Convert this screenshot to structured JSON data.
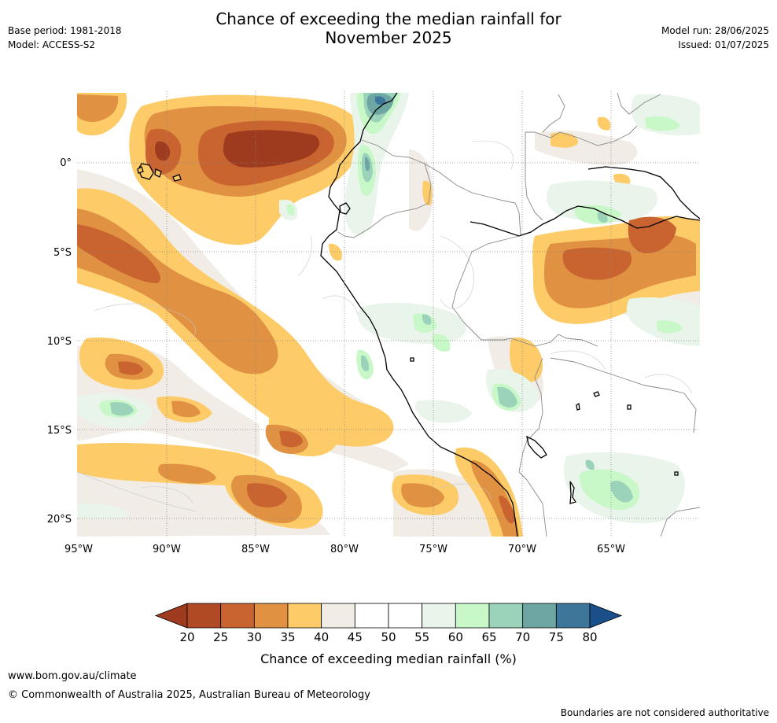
{
  "title": {
    "line1": "Chance of exceeding the median rainfall for",
    "line2": "November 2025"
  },
  "meta": {
    "base_period": "Base period: 1981-2018",
    "model": "Model: ACCESS-S2",
    "model_run": "Model run: 28/06/2025",
    "issued": "Issued: 01/07/2025"
  },
  "map": {
    "lon_labels": [
      "95°W",
      "90°W",
      "85°W",
      "80°W",
      "75°W",
      "70°W",
      "65°W"
    ],
    "lat_labels": [
      "0°",
      "5°S",
      "10°S",
      "15°S",
      "20°S"
    ]
  },
  "colorbar": {
    "label": "Chance of exceeding median rainfall (%)",
    "ticks": [
      "20",
      "25",
      "30",
      "35",
      "40",
      "45",
      "50",
      "55",
      "60",
      "65",
      "70",
      "75",
      "80"
    ],
    "colors": [
      "#9e3a1e",
      "#b04a25",
      "#c96330",
      "#e09142",
      "#fdcb67",
      "#f1ece6",
      "#ffffff",
      "#ffffff",
      "#e9f5ea",
      "#c8f7c8",
      "#9bd2ba",
      "#6ea6a3",
      "#3e769a",
      "#1a4f8a"
    ]
  },
  "footer": {
    "url": "www.bom.gov.au/climate",
    "copyright": "© Commonwealth of Australia 2025, Australian Bureau of Meteorology",
    "note": "Boundaries are not considered authoritative"
  }
}
